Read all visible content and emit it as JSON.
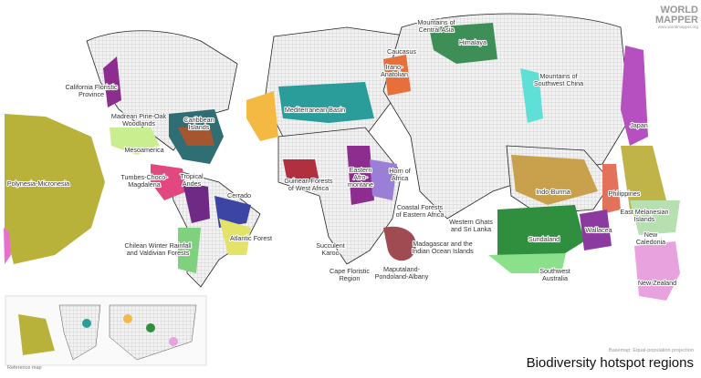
{
  "logo": {
    "lines": [
      "WORLD",
      "MAPPER"
    ],
    "url": "www.worldmapper.org"
  },
  "regions": [
    {
      "label": [
        "Mountains of",
        "Central Asia"
      ]
    },
    {
      "label": [
        "Himalaya"
      ]
    },
    {
      "label": [
        "Caucasus"
      ]
    },
    {
      "label": [
        "Irano-",
        "Anatolian"
      ]
    },
    {
      "label": [
        "Mountains of",
        "Southwest China"
      ]
    },
    {
      "label": [
        "California Floristic",
        "Province"
      ]
    },
    {
      "label": [
        "Madrean Pine-Oak",
        "Woodlands"
      ]
    },
    {
      "label": [
        "Caribbean",
        "Islands"
      ]
    },
    {
      "label": [
        "Mesoamerica"
      ]
    },
    {
      "label": [
        "Mediterranean Basin"
      ]
    },
    {
      "label": [
        "Japan"
      ]
    },
    {
      "label": [
        "Polynesia-Micronesia"
      ]
    },
    {
      "label": [
        "Tumbes-Chocó-",
        "Magdalena"
      ]
    },
    {
      "label": [
        "Tropical",
        "Andes"
      ]
    },
    {
      "label": [
        "Cerrado"
      ]
    },
    {
      "label": [
        "Guinean Forests",
        "of West Africa"
      ]
    },
    {
      "label": [
        "Eastern",
        "Afro-",
        "montane"
      ]
    },
    {
      "label": [
        "Horn of",
        "Africa"
      ]
    },
    {
      "label": [
        "Indo-Burma"
      ]
    },
    {
      "label": [
        "Philippines"
      ]
    },
    {
      "label": [
        "Coastal Forests",
        "of Eastern Africa"
      ]
    },
    {
      "label": [
        "Western Ghats",
        "and Sri Lanka"
      ]
    },
    {
      "label": [
        "East Melanesian",
        "Islands"
      ]
    },
    {
      "label": [
        "Atlantic Forest"
      ]
    },
    {
      "label": [
        "Sundaland"
      ]
    },
    {
      "label": [
        "Wallacea"
      ]
    },
    {
      "label": [
        "New",
        "Caledonia"
      ]
    },
    {
      "label": [
        "Chilean Winter Rainfall",
        "and Valdivian Forests"
      ]
    },
    {
      "label": [
        "Succulent",
        "Karoo"
      ]
    },
    {
      "label": [
        "Madagascar and the",
        "Indian Ocean Islands"
      ]
    },
    {
      "label": [
        "Cape Floristic",
        "Region"
      ]
    },
    {
      "label": [
        "Maputaland-",
        "Pondoland-Albany"
      ]
    },
    {
      "label": [
        "Southwest",
        "Australia"
      ]
    },
    {
      "label": [
        "New Zealand"
      ]
    }
  ],
  "reference_map": {
    "label": "Reference map"
  },
  "footer": {
    "note": "Basemap: Equal-population projection",
    "title": "Biodiversity hotspot regions"
  }
}
